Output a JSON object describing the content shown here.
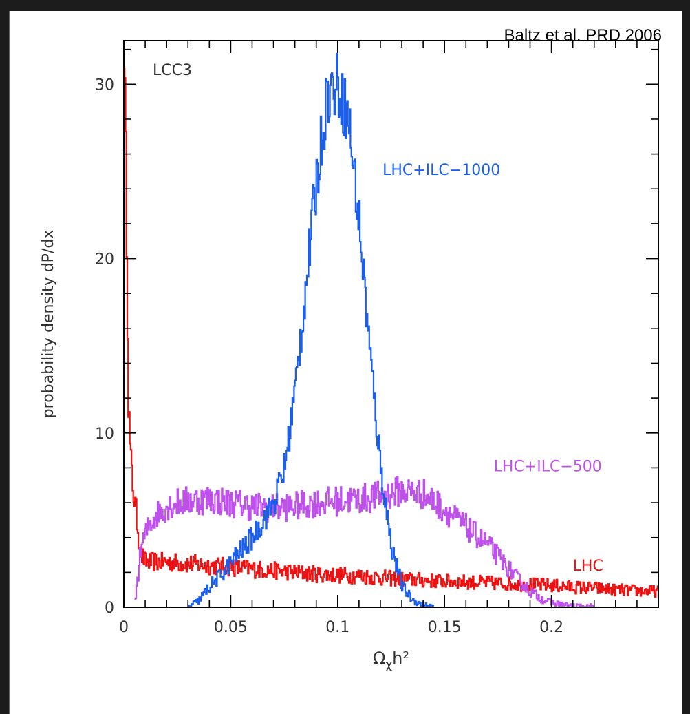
{
  "source_note": "Baltz et al. PRD 2006",
  "chart_data": {
    "type": "line",
    "title": "",
    "panel_label": "LCC3",
    "xlabel": "Ω",
    "xlabel_sub": "χ",
    "xlabel_suffix": "h²",
    "ylabel": "probability density dP/dx",
    "xlim": [
      0,
      0.25
    ],
    "ylim": [
      0,
      32.5
    ],
    "x_ticks": [
      {
        "value": 0,
        "label": "0"
      },
      {
        "value": 0.05,
        "label": "0.05"
      },
      {
        "value": 0.1,
        "label": "0.1"
      },
      {
        "value": 0.15,
        "label": "0.15"
      },
      {
        "value": 0.2,
        "label": "0.2"
      }
    ],
    "y_ticks": [
      {
        "value": 0,
        "label": "0"
      },
      {
        "value": 10,
        "label": "10"
      },
      {
        "value": 20,
        "label": "20"
      },
      {
        "value": 30,
        "label": "30"
      }
    ],
    "grid": false,
    "series": [
      {
        "name": "LHC",
        "color": "#ee1111",
        "label_at": [
          0.21,
          2.1
        ],
        "x": [
          0.0,
          0.001,
          0.002,
          0.003,
          0.004,
          0.005,
          0.006,
          0.007,
          0.008,
          0.01,
          0.015,
          0.02,
          0.03,
          0.04,
          0.05,
          0.06,
          0.07,
          0.08,
          0.09,
          0.1,
          0.11,
          0.12,
          0.13,
          0.14,
          0.15,
          0.16,
          0.17,
          0.18,
          0.19,
          0.2,
          0.21,
          0.22,
          0.23,
          0.24,
          0.25
        ],
        "y": [
          32.5,
          24,
          12,
          8.5,
          7,
          6,
          5,
          3.8,
          3.0,
          2.6,
          2.6,
          2.6,
          2.5,
          2.4,
          2.3,
          2.2,
          2.1,
          2.0,
          1.9,
          1.85,
          1.8,
          1.7,
          1.6,
          1.55,
          1.5,
          1.45,
          1.4,
          1.35,
          1.3,
          1.25,
          1.15,
          1.1,
          1.0,
          0.95,
          0.9
        ]
      },
      {
        "name": "LHC+ILC−500",
        "color": "#c050ee",
        "label_at": [
          0.173,
          7.8
        ],
        "x": [
          0.005,
          0.008,
          0.01,
          0.012,
          0.015,
          0.02,
          0.025,
          0.03,
          0.04,
          0.05,
          0.06,
          0.07,
          0.08,
          0.09,
          0.1,
          0.11,
          0.12,
          0.13,
          0.14,
          0.15,
          0.16,
          0.17,
          0.175,
          0.18,
          0.185,
          0.19,
          0.195,
          0.2,
          0.21,
          0.22
        ],
        "y": [
          0.3,
          3.5,
          4.2,
          4.8,
          5.3,
          5.8,
          6.0,
          6.1,
          6.2,
          6.0,
          5.8,
          5.7,
          5.8,
          6.0,
          6.1,
          6.2,
          6.4,
          6.7,
          6.5,
          5.6,
          4.6,
          3.6,
          2.9,
          2.2,
          1.5,
          0.9,
          0.5,
          0.25,
          0.05,
          0.0
        ]
      },
      {
        "name": "LHC+ILC−1000",
        "color": "#1a5ef0",
        "label_at": [
          0.121,
          24.8
        ],
        "x": [
          0.03,
          0.035,
          0.04,
          0.045,
          0.05,
          0.055,
          0.06,
          0.065,
          0.07,
          0.075,
          0.08,
          0.085,
          0.09,
          0.095,
          0.1,
          0.105,
          0.11,
          0.115,
          0.12,
          0.125,
          0.13,
          0.135,
          0.14,
          0.145
        ],
        "y": [
          0.0,
          0.4,
          1.2,
          1.8,
          2.6,
          3.3,
          4.0,
          5.0,
          6.0,
          8.0,
          12.5,
          18.5,
          24.5,
          29.5,
          30.0,
          28.0,
          22.0,
          14.5,
          8.0,
          3.5,
          1.2,
          0.4,
          0.1,
          0.0
        ]
      }
    ]
  }
}
